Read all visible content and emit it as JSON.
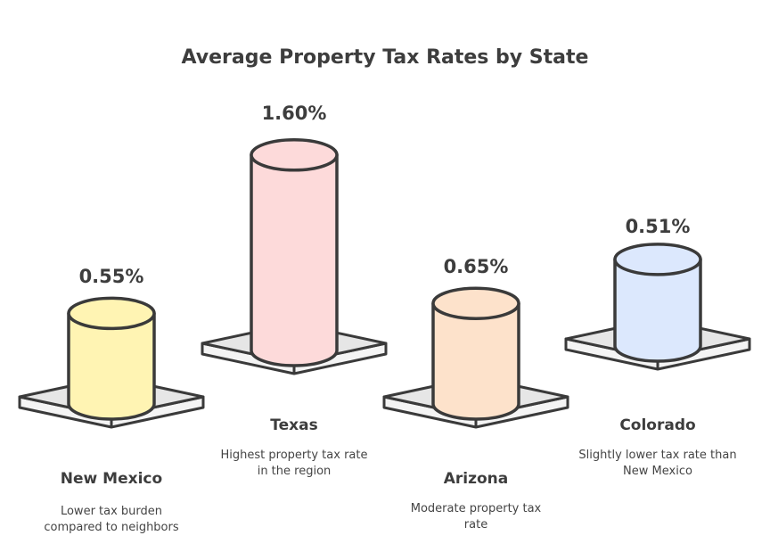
{
  "chart_data": {
    "type": "bar",
    "title": "Average Property Tax Rates by State",
    "categories": [
      "New Mexico",
      "Texas",
      "Arizona",
      "Colorado"
    ],
    "values": [
      0.55,
      1.6,
      0.65,
      0.51
    ],
    "value_labels": [
      "0.55%",
      "1.60%",
      "0.65%",
      "0.51%"
    ],
    "descriptions": [
      "Lower tax burden compared to neighbors",
      "Highest property tax rate in the region",
      "Moderate property tax rate",
      "Slightly lower tax rate than New Mexico"
    ],
    "colors": [
      "#fff4b3",
      "#fddada",
      "#fde2cb",
      "#dce8fd"
    ],
    "unit": "%"
  }
}
